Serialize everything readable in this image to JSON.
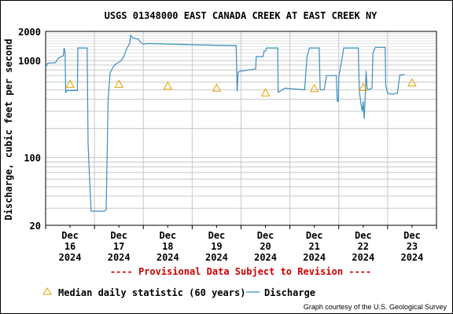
{
  "chart_data": {
    "type": "line",
    "title": "USGS 01348000 EAST CANADA CREEK AT EAST CREEK NY",
    "ylabel": "Discharge, cubic feet per second",
    "xlabel": "",
    "yscale": "log",
    "ylim": [
      20,
      2000
    ],
    "yticks": [
      "2000",
      "1000",
      "100",
      "20"
    ],
    "xlim": [
      0,
      8
    ],
    "xticks": [
      {
        "month": "Dec",
        "day": "16",
        "year": "2024",
        "x": 0.5
      },
      {
        "month": "Dec",
        "day": "17",
        "year": "2024",
        "x": 1.5
      },
      {
        "month": "Dec",
        "day": "18",
        "year": "2024",
        "x": 2.5
      },
      {
        "month": "Dec",
        "day": "19",
        "year": "2024",
        "x": 3.5
      },
      {
        "month": "Dec",
        "day": "20",
        "year": "2024",
        "x": 4.5
      },
      {
        "month": "Dec",
        "day": "21",
        "year": "2024",
        "x": 5.5
      },
      {
        "month": "Dec",
        "day": "22",
        "year": "2024",
        "x": 6.5
      },
      {
        "month": "Dec",
        "day": "23",
        "year": "2024",
        "x": 7.5
      }
    ],
    "grid": true,
    "series": [
      {
        "name": "Discharge",
        "color": "#3a8fbf",
        "points": [
          [
            0.0,
            850
          ],
          [
            0.04,
            940
          ],
          [
            0.2,
            950
          ],
          [
            0.23,
            1000
          ],
          [
            0.26,
            1060
          ],
          [
            0.36,
            1120
          ],
          [
            0.38,
            1350
          ],
          [
            0.4,
            1180
          ],
          [
            0.41,
            470
          ],
          [
            0.44,
            490
          ],
          [
            0.65,
            490
          ],
          [
            0.66,
            1350
          ],
          [
            0.85,
            1350
          ],
          [
            0.87,
            140
          ],
          [
            0.9,
            60
          ],
          [
            0.93,
            28
          ],
          [
            1.2,
            28
          ],
          [
            1.24,
            29
          ],
          [
            1.28,
            400
          ],
          [
            1.32,
            750
          ],
          [
            1.4,
            890
          ],
          [
            1.45,
            930
          ],
          [
            1.55,
            1000
          ],
          [
            1.6,
            1100
          ],
          [
            1.66,
            1330
          ],
          [
            1.72,
            1500
          ],
          [
            1.74,
            1820
          ],
          [
            1.78,
            1720
          ],
          [
            1.9,
            1660
          ],
          [
            1.94,
            1550
          ],
          [
            2.0,
            1480
          ],
          [
            2.1,
            1500
          ],
          [
            2.5,
            1480
          ],
          [
            3.0,
            1460
          ],
          [
            3.5,
            1440
          ],
          [
            3.9,
            1430
          ],
          [
            3.92,
            480
          ],
          [
            3.94,
            760
          ],
          [
            4.0,
            780
          ],
          [
            4.3,
            820
          ],
          [
            4.31,
            1100
          ],
          [
            4.45,
            1100
          ],
          [
            4.47,
            1250
          ],
          [
            4.5,
            1250
          ],
          [
            4.52,
            1350
          ],
          [
            4.75,
            1350
          ],
          [
            4.76,
            470
          ],
          [
            4.9,
            520
          ],
          [
            5.1,
            510
          ],
          [
            5.3,
            500
          ],
          [
            5.35,
            1100
          ],
          [
            5.4,
            1350
          ],
          [
            5.6,
            1350
          ],
          [
            5.62,
            500
          ],
          [
            5.7,
            500
          ],
          [
            5.75,
            700
          ],
          [
            5.95,
            700
          ],
          [
            5.97,
            380
          ],
          [
            5.99,
            380
          ],
          [
            6.0,
            680
          ],
          [
            6.06,
            1000
          ],
          [
            6.1,
            1350
          ],
          [
            6.4,
            1350
          ],
          [
            6.42,
            500
          ],
          [
            6.45,
            370
          ],
          [
            6.48,
            300
          ],
          [
            6.5,
            380
          ],
          [
            6.52,
            250
          ],
          [
            6.54,
            420
          ],
          [
            6.56,
            780
          ],
          [
            6.58,
            520
          ],
          [
            6.62,
            500
          ],
          [
            6.68,
            520
          ],
          [
            6.7,
            1200
          ],
          [
            6.75,
            1370
          ],
          [
            6.95,
            1370
          ],
          [
            6.96,
            560
          ],
          [
            7.0,
            460
          ],
          [
            7.1,
            450
          ],
          [
            7.2,
            460
          ],
          [
            7.25,
            710
          ],
          [
            7.35,
            720
          ]
        ]
      }
    ],
    "median": {
      "name": "Median daily statistic (60 years)",
      "color": "#e8a000",
      "points": [
        [
          0.5,
          570
        ],
        [
          1.5,
          570
        ],
        [
          2.5,
          545
        ],
        [
          3.5,
          520
        ],
        [
          4.5,
          465
        ],
        [
          5.5,
          515
        ],
        [
          6.5,
          530
        ],
        [
          7.5,
          590
        ]
      ]
    },
    "annotation": "---- Provisional Data Subject to Revision ----",
    "annotation_color": "#cc0000",
    "credit": "Graph courtesy of the U.S. Geological Survey"
  }
}
